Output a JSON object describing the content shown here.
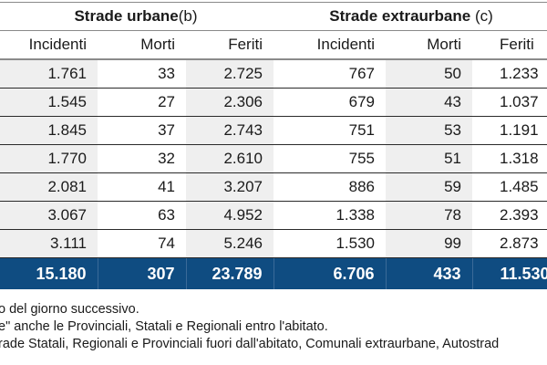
{
  "table": {
    "groups": [
      {
        "label": "Strade urbane",
        "note": "(b)"
      },
      {
        "label": "Strade extraurbane ",
        "note": "(c)"
      }
    ],
    "columns": [
      "Incidenti",
      "Morti",
      "Feriti",
      "Incidenti",
      "Morti",
      "Feriti"
    ],
    "rows": [
      [
        "1.761",
        "33",
        "2.725",
        "767",
        "50",
        "1.233"
      ],
      [
        "1.545",
        "27",
        "2.306",
        "679",
        "43",
        "1.037"
      ],
      [
        "1.845",
        "37",
        "2.743",
        "751",
        "53",
        "1.191"
      ],
      [
        "1.770",
        "32",
        "2.610",
        "755",
        "51",
        "1.318"
      ],
      [
        "2.081",
        "41",
        "3.207",
        "886",
        "59",
        "1.485"
      ],
      [
        "3.067",
        "63",
        "4.952",
        "1.338",
        "78",
        "2.393"
      ],
      [
        "3.111",
        "74",
        "5.246",
        "1.530",
        "99",
        "2.873"
      ]
    ],
    "totals": [
      "15.180",
      "307",
      "23.789",
      "6.706",
      "433",
      "11.530"
    ]
  },
  "footnotes": [
    "o del giorno successivo.",
    "e\" anche le Provinciali, Statali e Regionali entro l'abitato.",
    "rade Statali, Regionali e Provinciali fuori dall'abitato, Comunali extraurbane, Autostrad"
  ],
  "colors": {
    "total_row_bg": "#0f4c81",
    "shaded_column_bg": "#efefef"
  }
}
